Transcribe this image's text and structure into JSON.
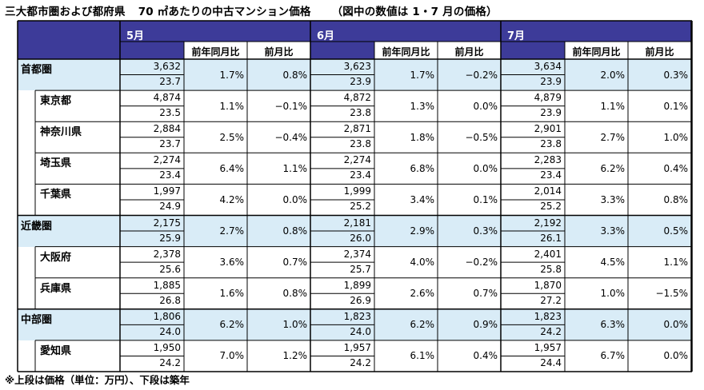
{
  "title": {
    "part1": "三大都市圏および都府県",
    "part2": "70 ㎡あたりの中古マンション価格",
    "part3": "（図中の数値は 1・7 月の価格）"
  },
  "months": [
    "5月",
    "6月",
    "7月"
  ],
  "columns": {
    "yoy": "前年同月比",
    "mom": "前月比",
    "view": ""
  },
  "rows": [
    {
      "name": "首都圏",
      "level": "region",
      "months": [
        {
          "price": "3,632",
          "age": "23.7",
          "yoy": "1.7%",
          "mom": "0.8%"
        },
        {
          "price": "3,623",
          "age": "23.9",
          "yoy": "1.7%",
          "mom": "−0.2%"
        },
        {
          "price": "3,634",
          "age": "23.9",
          "yoy": "2.0%",
          "mom": "0.3%"
        }
      ]
    },
    {
      "name": "東京都",
      "level": "pref",
      "months": [
        {
          "price": "4,874",
          "age": "23.5",
          "yoy": "1.1%",
          "mom": "−0.1%"
        },
        {
          "price": "4,872",
          "age": "23.8",
          "yoy": "1.3%",
          "mom": "0.0%"
        },
        {
          "price": "4,879",
          "age": "23.9",
          "yoy": "1.1%",
          "mom": "0.1%"
        }
      ]
    },
    {
      "name": "神奈川県",
      "level": "pref",
      "months": [
        {
          "price": "2,884",
          "age": "23.7",
          "yoy": "2.5%",
          "mom": "−0.4%"
        },
        {
          "price": "2,871",
          "age": "23.8",
          "yoy": "1.8%",
          "mom": "−0.5%"
        },
        {
          "price": "2,901",
          "age": "23.8",
          "yoy": "2.7%",
          "mom": "1.0%"
        }
      ]
    },
    {
      "name": "埼玉県",
      "level": "pref",
      "months": [
        {
          "price": "2,274",
          "age": "23.4",
          "yoy": "6.4%",
          "mom": "1.1%"
        },
        {
          "price": "2,274",
          "age": "23.4",
          "yoy": "6.8%",
          "mom": "0.0%"
        },
        {
          "price": "2,283",
          "age": "23.4",
          "yoy": "6.2%",
          "mom": "0.4%"
        }
      ]
    },
    {
      "name": "千葉県",
      "level": "pref",
      "months": [
        {
          "price": "1,997",
          "age": "24.9",
          "yoy": "4.2%",
          "mom": "0.0%"
        },
        {
          "price": "1,999",
          "age": "25.2",
          "yoy": "3.4%",
          "mom": "0.1%"
        },
        {
          "price": "2,014",
          "age": "25.2",
          "yoy": "3.3%",
          "mom": "0.8%"
        }
      ]
    },
    {
      "name": "近畿圏",
      "level": "region",
      "months": [
        {
          "price": "2,175",
          "age": "25.9",
          "yoy": "2.7%",
          "mom": "0.8%"
        },
        {
          "price": "2,181",
          "age": "26.0",
          "yoy": "2.9%",
          "mom": "0.3%"
        },
        {
          "price": "2,192",
          "age": "26.1",
          "yoy": "3.3%",
          "mom": "0.5%"
        }
      ]
    },
    {
      "name": "大阪府",
      "level": "pref",
      "months": [
        {
          "price": "2,378",
          "age": "25.6",
          "yoy": "3.6%",
          "mom": "0.7%"
        },
        {
          "price": "2,374",
          "age": "25.7",
          "yoy": "4.0%",
          "mom": "−0.2%"
        },
        {
          "price": "2,401",
          "age": "25.8",
          "yoy": "4.5%",
          "mom": "1.1%"
        }
      ]
    },
    {
      "name": "兵庫県",
      "level": "pref",
      "months": [
        {
          "price": "1,885",
          "age": "26.8",
          "yoy": "1.6%",
          "mom": "0.8%"
        },
        {
          "price": "1,899",
          "age": "26.9",
          "yoy": "2.6%",
          "mom": "0.7%"
        },
        {
          "price": "1,870",
          "age": "27.2",
          "yoy": "1.0%",
          "mom": "−1.5%"
        }
      ]
    },
    {
      "name": "中部圏",
      "level": "region",
      "months": [
        {
          "price": "1,806",
          "age": "24.0",
          "yoy": "6.2%",
          "mom": "1.0%"
        },
        {
          "price": "1,823",
          "age": "24.0",
          "yoy": "6.2%",
          "mom": "0.9%"
        },
        {
          "price": "1,823",
          "age": "24.2",
          "yoy": "6.3%",
          "mom": "0.0%"
        }
      ]
    },
    {
      "name": "愛知県",
      "level": "pref",
      "months": [
        {
          "price": "1,950",
          "age": "24.2",
          "yoy": "7.0%",
          "mom": "1.2%"
        },
        {
          "price": "1,957",
          "age": "24.2",
          "yoy": "6.1%",
          "mom": "0.4%"
        },
        {
          "price": "1,957",
          "age": "24.4",
          "yoy": "6.7%",
          "mom": "0.0%"
        }
      ]
    }
  ],
  "note": "※上段は価格（単位：万円）、下段は築年",
  "colors": {
    "header": "#3d3b99",
    "row_blue": "#d9ecf7",
    "border": "#000000"
  }
}
